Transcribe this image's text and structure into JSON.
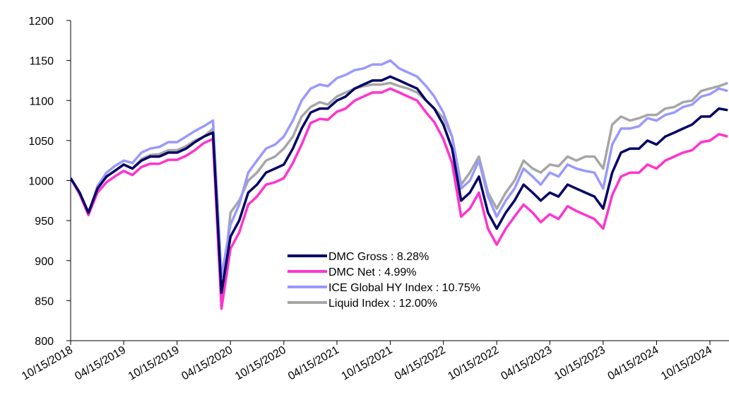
{
  "chart_data": {
    "type": "line",
    "x": [
      "10/15/2018",
      "11/15/2018",
      "12/15/2018",
      "01/15/2019",
      "02/15/2019",
      "03/15/2019",
      "04/15/2019",
      "05/15/2019",
      "06/15/2019",
      "07/15/2019",
      "08/15/2019",
      "09/15/2019",
      "10/15/2019",
      "11/15/2019",
      "12/15/2019",
      "01/15/2020",
      "02/15/2020",
      "03/15/2020",
      "04/15/2020",
      "05/15/2020",
      "06/15/2020",
      "07/15/2020",
      "08/15/2020",
      "09/15/2020",
      "10/15/2020",
      "11/15/2020",
      "12/15/2020",
      "01/15/2021",
      "02/15/2021",
      "03/15/2021",
      "04/15/2021",
      "05/15/2021",
      "06/15/2021",
      "07/15/2021",
      "08/15/2021",
      "09/15/2021",
      "10/15/2021",
      "11/15/2021",
      "12/15/2021",
      "01/15/2022",
      "02/15/2022",
      "03/15/2022",
      "04/15/2022",
      "05/15/2022",
      "06/15/2022",
      "07/15/2022",
      "08/15/2022",
      "09/15/2022",
      "10/15/2022",
      "11/15/2022",
      "12/15/2022",
      "01/15/2023",
      "02/15/2023",
      "03/15/2023",
      "04/15/2023",
      "05/15/2023",
      "06/15/2023",
      "07/15/2023",
      "08/15/2023",
      "09/15/2023",
      "10/15/2023",
      "11/15/2023",
      "12/15/2023",
      "01/15/2024",
      "02/15/2024",
      "03/15/2024",
      "04/15/2024",
      "05/15/2024",
      "06/15/2024",
      "07/15/2024",
      "08/15/2024",
      "09/15/2024",
      "10/15/2024",
      "11/15/2024",
      "12/15/2024"
    ],
    "series": [
      {
        "name": "DMC Gross : 8.28%",
        "color": "#000066",
        "values": [
          1003,
          985,
          960,
          990,
          1005,
          1012,
          1020,
          1015,
          1025,
          1030,
          1030,
          1035,
          1035,
          1040,
          1048,
          1055,
          1060,
          860,
          930,
          950,
          985,
          995,
          1010,
          1015,
          1020,
          1040,
          1065,
          1085,
          1090,
          1090,
          1100,
          1105,
          1115,
          1120,
          1125,
          1125,
          1130,
          1125,
          1120,
          1115,
          1100,
          1090,
          1070,
          1040,
          975,
          985,
          1005,
          960,
          940,
          960,
          975,
          995,
          985,
          975,
          985,
          980,
          995,
          990,
          985,
          980,
          965,
          1010,
          1035,
          1040,
          1040,
          1050,
          1045,
          1055,
          1060,
          1065,
          1070,
          1080,
          1080,
          1090,
          1088
        ]
      },
      {
        "name": "DMC Net : 4.99%",
        "color": "#ff33cc",
        "values": [
          1003,
          983,
          957,
          985,
          998,
          1005,
          1012,
          1007,
          1017,
          1021,
          1021,
          1026,
          1026,
          1031,
          1038,
          1047,
          1052,
          840,
          915,
          935,
          970,
          980,
          995,
          998,
          1003,
          1022,
          1045,
          1072,
          1077,
          1076,
          1086,
          1090,
          1100,
          1105,
          1110,
          1110,
          1115,
          1110,
          1105,
          1100,
          1085,
          1073,
          1052,
          1022,
          955,
          965,
          985,
          940,
          920,
          940,
          955,
          970,
          960,
          948,
          958,
          952,
          968,
          962,
          957,
          952,
          940,
          982,
          1005,
          1010,
          1010,
          1020,
          1015,
          1025,
          1030,
          1035,
          1038,
          1048,
          1050,
          1058,
          1055
        ]
      },
      {
        "name": "ICE Global HY Index : 10.75%",
        "color": "#9999ff",
        "values": [
          1003,
          985,
          958,
          993,
          1010,
          1018,
          1025,
          1022,
          1035,
          1040,
          1042,
          1048,
          1048,
          1055,
          1062,
          1068,
          1075,
          880,
          945,
          970,
          1010,
          1025,
          1040,
          1045,
          1055,
          1075,
          1100,
          1115,
          1120,
          1118,
          1128,
          1132,
          1138,
          1140,
          1145,
          1145,
          1150,
          1140,
          1135,
          1130,
          1118,
          1105,
          1085,
          1055,
          990,
          1000,
          1025,
          980,
          955,
          975,
          990,
          1015,
          1005,
          995,
          1010,
          1005,
          1020,
          1015,
          1012,
          1010,
          990,
          1045,
          1065,
          1065,
          1068,
          1078,
          1075,
          1082,
          1085,
          1092,
          1095,
          1105,
          1108,
          1115,
          1112
        ]
      },
      {
        "name": "Liquid Index : 12.00%",
        "color": "#a6a6a6",
        "values": [
          1003,
          983,
          960,
          990,
          1005,
          1012,
          1020,
          1015,
          1027,
          1032,
          1033,
          1038,
          1038,
          1043,
          1050,
          1055,
          1065,
          850,
          960,
          975,
          1000,
          1010,
          1025,
          1030,
          1040,
          1055,
          1080,
          1092,
          1098,
          1095,
          1105,
          1110,
          1115,
          1118,
          1120,
          1120,
          1122,
          1118,
          1115,
          1110,
          1100,
          1090,
          1078,
          1055,
          995,
          1010,
          1030,
          985,
          965,
          985,
          1000,
          1025,
          1015,
          1010,
          1020,
          1018,
          1030,
          1025,
          1030,
          1030,
          1015,
          1070,
          1080,
          1075,
          1078,
          1082,
          1082,
          1090,
          1092,
          1098,
          1100,
          1112,
          1115,
          1118,
          1122
        ]
      }
    ],
    "xlim": [
      "10/15/2018",
      "12/15/2024"
    ],
    "xticks": [
      "10/15/2018",
      "04/15/2019",
      "10/15/2019",
      "04/15/2020",
      "10/15/2020",
      "04/15/2021",
      "10/15/2021",
      "04/15/2022",
      "10/15/2022",
      "04/15/2023",
      "10/15/2023",
      "04/15/2024",
      "10/15/2024"
    ],
    "ylim": [
      800,
      1200
    ],
    "yticks": [
      800,
      850,
      900,
      950,
      1000,
      1050,
      1100,
      1150,
      1200
    ],
    "legend": "center"
  }
}
